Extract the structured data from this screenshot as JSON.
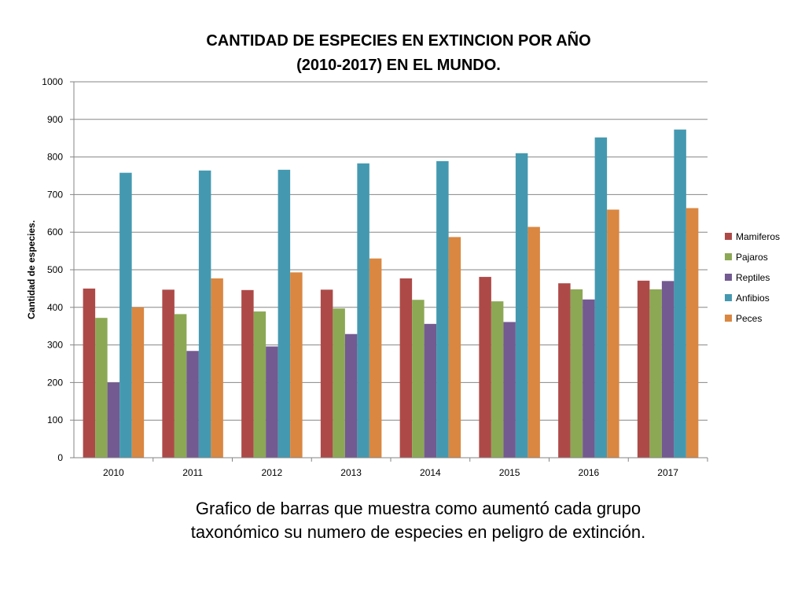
{
  "caption": "Grafico de barras que muestra como aumentó cada grupo taxonómico su numero de  especies en peligro de extinción.",
  "chart_data": {
    "type": "bar",
    "title_lines": [
      "CANTIDAD DE ESPECIES EN EXTINCION POR AÑO",
      "(2010-2017) EN EL MUNDO."
    ],
    "xlabel": "",
    "ylabel": "Cantidad de especies.",
    "ylim": [
      0,
      1000
    ],
    "yticks": [
      0,
      100,
      200,
      300,
      400,
      500,
      600,
      700,
      800,
      900,
      1000
    ],
    "grid": true,
    "legend_position": "right",
    "categories": [
      "2010",
      "2011",
      "2012",
      "2013",
      "2014",
      "2015",
      "2016",
      "2017"
    ],
    "series": [
      {
        "name": "Mamiferos",
        "color": "#AD4A48",
        "values": [
          450,
          447,
          446,
          447,
          477,
          481,
          464,
          471
        ]
      },
      {
        "name": "Pajaros",
        "color": "#8CA855",
        "values": [
          372,
          382,
          389,
          397,
          420,
          416,
          448,
          448
        ]
      },
      {
        "name": "Reptiles",
        "color": "#735A91",
        "values": [
          200,
          284,
          296,
          329,
          356,
          361,
          421,
          470
        ]
      },
      {
        "name": "Anfibios",
        "color": "#4499B0",
        "values": [
          758,
          764,
          766,
          783,
          789,
          810,
          852,
          873
        ]
      },
      {
        "name": "Peces",
        "color": "#DA8742",
        "values": [
          400,
          477,
          493,
          530,
          587,
          614,
          660,
          664
        ]
      }
    ]
  }
}
